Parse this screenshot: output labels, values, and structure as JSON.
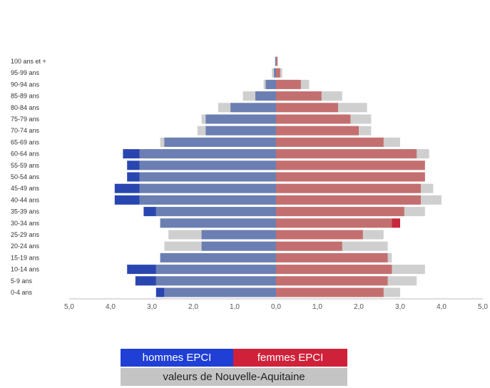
{
  "chart_data": {
    "type": "bar",
    "orientation": "horizontal",
    "categories": [
      "0-4 ans",
      "5-9 ans",
      "10-14 ans",
      "15-19 ans",
      "20-24 ans",
      "25-29 ans",
      "30-34 ans",
      "35-39 ans",
      "40-44 ans",
      "45-49 ans",
      "50-54 ans",
      "55-59 ans",
      "60-64 ans",
      "65-69 ans",
      "70-74 ans",
      "75-79 ans",
      "80-84 ans",
      "85-89 ans",
      "90-94 ans",
      "95-99 ans",
      "100 ans et +"
    ],
    "series": [
      {
        "name": "hommes EPCI",
        "side": "left",
        "values": [
          2.9,
          3.4,
          3.6,
          2.8,
          1.8,
          1.8,
          2.8,
          3.2,
          3.9,
          3.9,
          3.6,
          3.6,
          3.7,
          2.7,
          1.7,
          1.7,
          1.1,
          0.5,
          0.25,
          0.05,
          0.02
        ]
      },
      {
        "name": "femmes EPCI",
        "side": "right",
        "values": [
          2.6,
          2.7,
          2.8,
          2.7,
          1.6,
          2.1,
          3.0,
          3.1,
          3.5,
          3.5,
          3.6,
          3.6,
          3.4,
          2.6,
          2.0,
          1.8,
          1.5,
          1.1,
          0.6,
          0.1,
          0.03
        ]
      },
      {
        "name": "valeurs de Nouvelle-Aquitaine",
        "values_left": [
          2.7,
          2.9,
          2.9,
          2.8,
          2.7,
          2.6,
          2.8,
          2.9,
          3.3,
          3.3,
          3.3,
          3.3,
          3.3,
          2.8,
          1.9,
          1.8,
          1.4,
          0.8,
          0.3,
          0.1,
          0.02
        ],
        "values_right": [
          3.0,
          3.4,
          3.6,
          2.8,
          2.7,
          2.6,
          2.8,
          3.6,
          4.0,
          3.8,
          3.6,
          3.6,
          3.7,
          3.0,
          2.3,
          2.3,
          2.2,
          1.6,
          0.8,
          0.15,
          0.05
        ]
      }
    ],
    "xlim": [
      -5,
      5
    ],
    "x_ticks": [
      "5,0",
      "4,0",
      "3,0",
      "2,0",
      "1,0",
      "0,0",
      "1,0",
      "2,0",
      "3,0",
      "4,0",
      "5,0"
    ],
    "colors": {
      "hommes": "#6b7fb3",
      "hommes_excess": "#2946b0",
      "femmes": "#c46f6f",
      "femmes_excess": "#c8283c",
      "region": "#cfcfcf"
    },
    "legend_placement": "bottom"
  },
  "legend": {
    "hommes": "hommes EPCI",
    "femmes": "femmes EPCI",
    "region": "valeurs de Nouvelle-Aquitaine",
    "colors": {
      "hommes": "#1f3fd6",
      "femmes": "#d0213a",
      "region": "#c4c4c4"
    }
  }
}
